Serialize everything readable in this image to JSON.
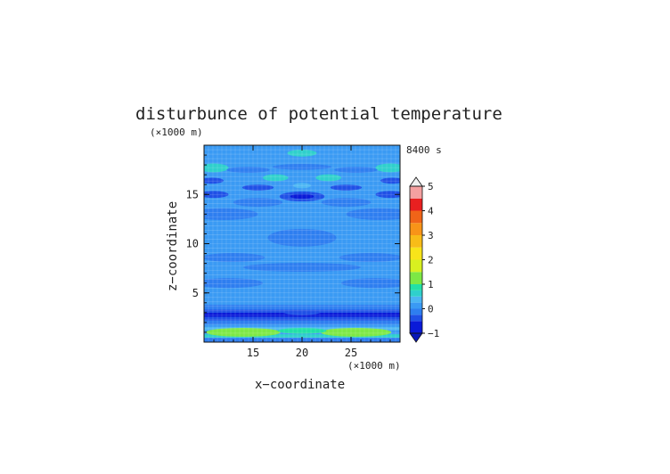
{
  "chart_data": {
    "type": "heatmap",
    "title": "disturbunce of potential temperature",
    "time_label": "8400 s",
    "xlabel": "x−coordinate",
    "ylabel": "z−coordinate",
    "x_unit": "(×1000 m)",
    "y_unit": "(×1000 m)",
    "xlim": [
      10,
      30
    ],
    "ylim": [
      0,
      20
    ],
    "x_ticks": [
      15,
      20,
      25
    ],
    "y_ticks": [
      5,
      10,
      15
    ],
    "x_tick_labels": [
      "15",
      "20",
      "25"
    ],
    "y_tick_labels": [
      "5",
      "10",
      "15"
    ],
    "grid": true,
    "colorbar": {
      "min": -1,
      "max": 5,
      "ticks": [
        -1,
        0,
        1,
        2,
        3,
        4,
        5
      ],
      "tick_labels": [
        "−1",
        "0",
        "1",
        "2",
        "3",
        "4",
        "5"
      ],
      "levels": [
        {
          "from": -1.0,
          "to": -0.5,
          "color": "#0a1ad8"
        },
        {
          "from": -0.5,
          "to": -0.25,
          "color": "#1f50e6"
        },
        {
          "from": -0.25,
          "to": 0.0,
          "color": "#2e7ef0"
        },
        {
          "from": 0.0,
          "to": 0.25,
          "color": "#3a9af4"
        },
        {
          "from": 0.25,
          "to": 0.5,
          "color": "#4bb5f3"
        },
        {
          "from": 0.5,
          "to": 0.75,
          "color": "#2fd0cc"
        },
        {
          "from": 0.75,
          "to": 1.0,
          "color": "#22e0a6"
        },
        {
          "from": 1.0,
          "to": 1.5,
          "color": "#7de845"
        },
        {
          "from": 1.5,
          "to": 2.0,
          "color": "#d8f020"
        },
        {
          "from": 2.0,
          "to": 2.5,
          "color": "#f8e41a"
        },
        {
          "from": 2.5,
          "to": 3.0,
          "color": "#f8bc18"
        },
        {
          "from": 3.0,
          "to": 3.5,
          "color": "#f89418"
        },
        {
          "from": 3.5,
          "to": 4.0,
          "color": "#f06418"
        },
        {
          "from": 4.0,
          "to": 4.5,
          "color": "#e82020"
        },
        {
          "from": 4.5,
          "to": 5.0,
          "color": "#f4a0a0"
        }
      ],
      "under_color": "#0818b8",
      "over_color": "#f0f0f0"
    },
    "background_color": "#3a9af4",
    "bands": [
      {
        "z0": 0.0,
        "z1": 0.45,
        "color": "#2e7ef0"
      },
      {
        "z0": 0.45,
        "z1": 0.8,
        "color": "#2fd0cc"
      },
      {
        "z0": 1.2,
        "z1": 1.55,
        "color": "#4bb5f3"
      },
      {
        "z0": 1.8,
        "z1": 2.2,
        "color": "#2e7ef0"
      },
      {
        "z0": 2.2,
        "z1": 2.55,
        "color": "#1f50e6"
      },
      {
        "z0": 2.55,
        "z1": 3.0,
        "color": "#0a1ad8"
      },
      {
        "z0": 3.0,
        "z1": 3.3,
        "color": "#1f50e6"
      },
      {
        "z0": 3.3,
        "z1": 3.8,
        "color": "#2e7ef0"
      }
    ],
    "blobs": [
      {
        "x": 14.0,
        "z": 1.0,
        "rx": 3.8,
        "rz": 0.45,
        "color": "#7de845"
      },
      {
        "x": 25.5,
        "z": 1.0,
        "rx": 3.6,
        "rz": 0.45,
        "color": "#7de845"
      },
      {
        "x": 20.0,
        "z": 1.15,
        "rx": 2.5,
        "rz": 0.3,
        "color": "#22e0a6"
      },
      {
        "x": 20.0,
        "z": 3.0,
        "rx": 1.8,
        "rz": 0.25,
        "color": "#1f50e6"
      },
      {
        "x": 12.5,
        "z": 6.0,
        "rx": 3.5,
        "rz": 0.5,
        "color": "#2e7ef0"
      },
      {
        "x": 27.5,
        "z": 6.0,
        "rx": 3.5,
        "rz": 0.5,
        "color": "#2e7ef0"
      },
      {
        "x": 20.0,
        "z": 7.6,
        "rx": 6.0,
        "rz": 0.45,
        "color": "#2e7ef0"
      },
      {
        "x": 13.0,
        "z": 8.6,
        "rx": 3.2,
        "rz": 0.45,
        "color": "#2e7ef0"
      },
      {
        "x": 27.0,
        "z": 8.6,
        "rx": 3.2,
        "rz": 0.45,
        "color": "#2e7ef0"
      },
      {
        "x": 20.0,
        "z": 10.6,
        "rx": 3.5,
        "rz": 0.9,
        "color": "#2e7ef0"
      },
      {
        "x": 12.0,
        "z": 13.0,
        "rx": 3.5,
        "rz": 0.6,
        "color": "#2e7ef0"
      },
      {
        "x": 28.0,
        "z": 13.0,
        "rx": 3.5,
        "rz": 0.6,
        "color": "#2e7ef0"
      },
      {
        "x": 15.5,
        "z": 14.2,
        "rx": 2.5,
        "rz": 0.45,
        "color": "#2e7ef0"
      },
      {
        "x": 24.5,
        "z": 14.2,
        "rx": 2.5,
        "rz": 0.45,
        "color": "#2e7ef0"
      },
      {
        "x": 20.0,
        "z": 14.8,
        "rx": 2.3,
        "rz": 0.5,
        "color": "#1f50e6"
      },
      {
        "x": 20.0,
        "z": 14.8,
        "rx": 1.2,
        "rz": 0.25,
        "color": "#0a1ad8"
      },
      {
        "x": 11.0,
        "z": 15.0,
        "rx": 1.5,
        "rz": 0.35,
        "color": "#1f50e6"
      },
      {
        "x": 29.0,
        "z": 15.0,
        "rx": 1.5,
        "rz": 0.35,
        "color": "#1f50e6"
      },
      {
        "x": 15.5,
        "z": 15.7,
        "rx": 1.6,
        "rz": 0.3,
        "color": "#1f50e6"
      },
      {
        "x": 24.5,
        "z": 15.7,
        "rx": 1.6,
        "rz": 0.3,
        "color": "#1f50e6"
      },
      {
        "x": 20.0,
        "z": 15.9,
        "rx": 0.9,
        "rz": 0.28,
        "color": "#4bb5f3"
      },
      {
        "x": 10.8,
        "z": 16.4,
        "rx": 1.2,
        "rz": 0.3,
        "color": "#1f50e6"
      },
      {
        "x": 29.2,
        "z": 16.4,
        "rx": 1.2,
        "rz": 0.3,
        "color": "#1f50e6"
      },
      {
        "x": 17.3,
        "z": 16.7,
        "rx": 1.3,
        "rz": 0.35,
        "color": "#2fd0cc"
      },
      {
        "x": 22.7,
        "z": 16.7,
        "rx": 1.3,
        "rz": 0.35,
        "color": "#2fd0cc"
      },
      {
        "x": 11.0,
        "z": 17.7,
        "rx": 1.5,
        "rz": 0.45,
        "color": "#2fd0cc"
      },
      {
        "x": 29.0,
        "z": 17.7,
        "rx": 1.5,
        "rz": 0.45,
        "color": "#2fd0cc"
      },
      {
        "x": 20.0,
        "z": 17.8,
        "rx": 3.0,
        "rz": 0.3,
        "color": "#2e7ef0"
      },
      {
        "x": 14.5,
        "z": 17.5,
        "rx": 2.2,
        "rz": 0.3,
        "color": "#2e7ef0"
      },
      {
        "x": 25.5,
        "z": 17.5,
        "rx": 2.2,
        "rz": 0.3,
        "color": "#2e7ef0"
      },
      {
        "x": 20.0,
        "z": 19.2,
        "rx": 1.5,
        "rz": 0.35,
        "color": "#2fd0cc"
      }
    ]
  }
}
